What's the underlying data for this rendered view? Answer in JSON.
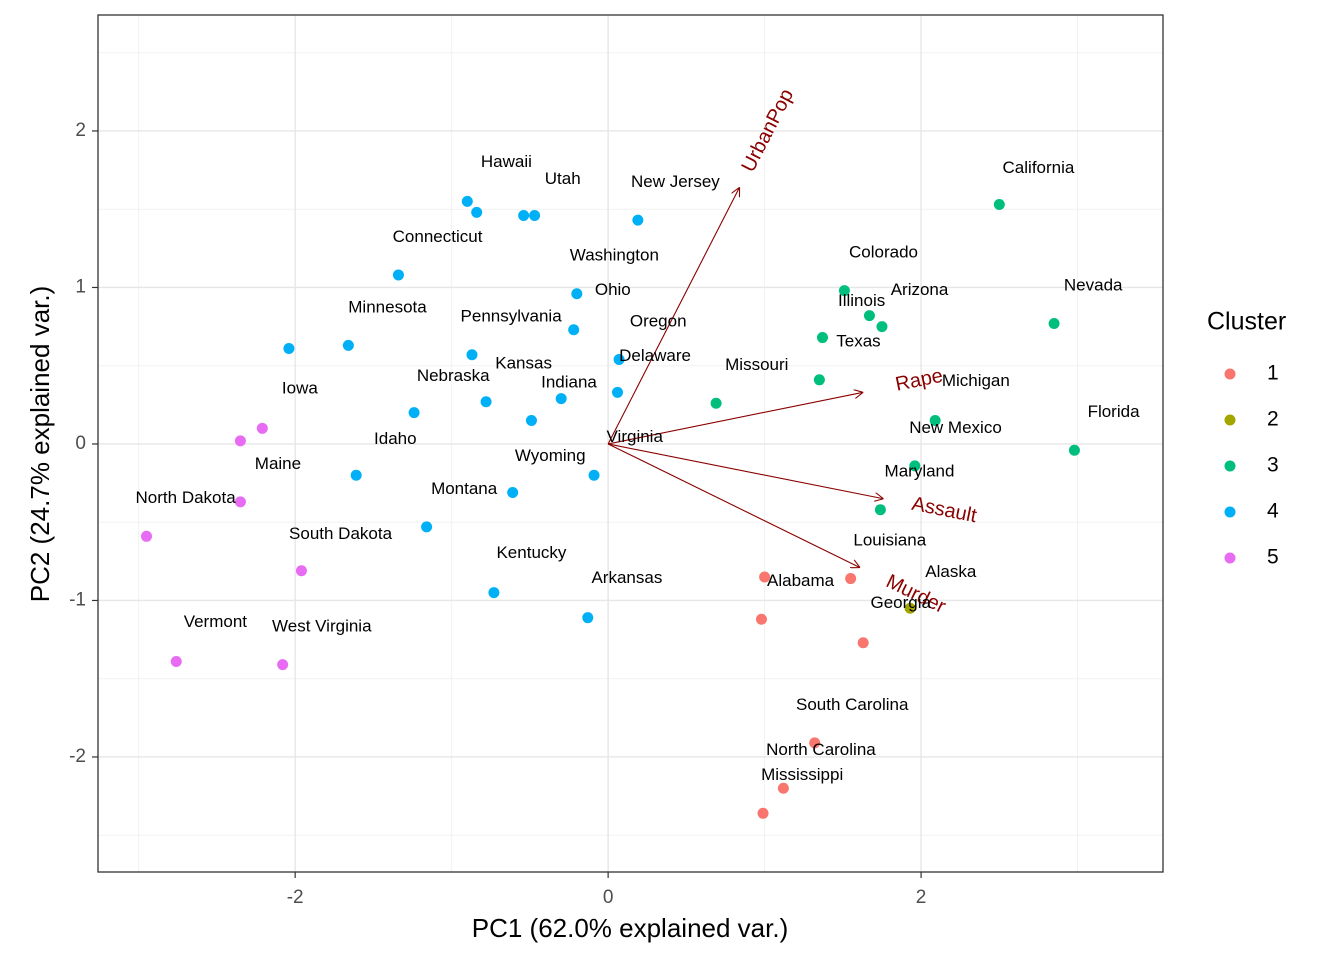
{
  "chart_data": {
    "type": "scatter",
    "x_label": "PC1 (62.0% explained var.)",
    "y_label": "PC2 (24.7% explained var.)",
    "xlim": [
      -3.26,
      3.546
    ],
    "ylim": [
      -2.735,
      2.741
    ],
    "xticks": [
      -2,
      0,
      2
    ],
    "yticks": [
      -2,
      -1,
      0,
      1,
      2
    ],
    "grid": true,
    "legend_title": "Cluster",
    "legend_position": "right",
    "series": [
      {
        "name": "1",
        "color": "#F8766D",
        "x": [
          1.0,
          1.55,
          0.98,
          1.63,
          1.32,
          1.12,
          0.99
        ],
        "values": [
          -0.85,
          -0.86,
          -1.12,
          -1.27,
          -1.91,
          -2.2,
          -2.36
        ]
      },
      {
        "name": "2",
        "color": "#A3A500",
        "x": [
          1.93
        ],
        "values": [
          -1.05
        ]
      },
      {
        "name": "3",
        "color": "#00BF7D",
        "x": [
          2.5,
          1.51,
          1.67,
          1.75,
          1.37,
          2.85,
          1.35,
          0.69,
          2.09,
          1.96,
          2.98,
          1.74
        ],
        "values": [
          1.53,
          0.98,
          0.82,
          0.75,
          0.68,
          0.77,
          0.41,
          0.26,
          0.15,
          -0.14,
          -0.04,
          -0.42
        ]
      },
      {
        "name": "4",
        "color": "#00B0F6",
        "x": [
          -0.9,
          -0.84,
          -0.54,
          -0.47,
          0.19,
          -1.34,
          -0.2,
          -0.22,
          -2.04,
          -1.66,
          -0.87,
          0.07,
          0.06,
          -0.3,
          -0.78,
          -1.24,
          -0.49,
          -1.61,
          -0.09,
          -0.61,
          -1.16,
          -0.73,
          -0.13
        ],
        "values": [
          1.55,
          1.48,
          1.46,
          1.46,
          1.43,
          1.08,
          0.96,
          0.73,
          0.61,
          0.63,
          0.57,
          0.54,
          0.33,
          0.29,
          0.27,
          0.2,
          0.15,
          -0.2,
          -0.2,
          -0.31,
          -0.53,
          -0.95,
          -1.11
        ]
      },
      {
        "name": "5",
        "color": "#E76BF3",
        "x": [
          -2.35,
          -2.21,
          -2.35,
          -2.95,
          -1.96,
          -2.76,
          -2.08
        ],
        "values": [
          0.02,
          0.1,
          -0.37,
          -0.59,
          -0.81,
          -1.39,
          -1.41
        ]
      }
    ],
    "labels": [
      {
        "text": "Hawaii",
        "x": -0.65,
        "y": 1.8
      },
      {
        "text": "Utah",
        "x": -0.29,
        "y": 1.69
      },
      {
        "text": "New Jersey",
        "x": 0.43,
        "y": 1.67
      },
      {
        "text": "California",
        "x": 2.75,
        "y": 1.76
      },
      {
        "text": "Connecticut",
        "x": -1.09,
        "y": 1.32
      },
      {
        "text": "Washington",
        "x": 0.04,
        "y": 1.2
      },
      {
        "text": "Colorado",
        "x": 1.76,
        "y": 1.22
      },
      {
        "text": "Ohio",
        "x": 0.03,
        "y": 0.98
      },
      {
        "text": "Illinois",
        "x": 1.62,
        "y": 0.91
      },
      {
        "text": "Arizona",
        "x": 1.99,
        "y": 0.98
      },
      {
        "text": "Nevada",
        "x": 3.1,
        "y": 1.01
      },
      {
        "text": "Minnesota",
        "x": -1.41,
        "y": 0.87
      },
      {
        "text": "Pennsylvania",
        "x": -0.62,
        "y": 0.81
      },
      {
        "text": "Oregon",
        "x": 0.32,
        "y": 0.78
      },
      {
        "text": "Texas",
        "x": 1.6,
        "y": 0.65
      },
      {
        "text": "Delaware",
        "x": 0.3,
        "y": 0.56
      },
      {
        "text": "Kansas",
        "x": -0.54,
        "y": 0.51
      },
      {
        "text": "Missouri",
        "x": 0.95,
        "y": 0.5
      },
      {
        "text": "Nebraska",
        "x": -0.99,
        "y": 0.43
      },
      {
        "text": "Iowa",
        "x": -1.97,
        "y": 0.35
      },
      {
        "text": "Indiana",
        "x": -0.25,
        "y": 0.39
      },
      {
        "text": "Michigan",
        "x": 2.35,
        "y": 0.4
      },
      {
        "text": "Florida",
        "x": 3.23,
        "y": 0.2
      },
      {
        "text": "New Mexico",
        "x": 2.22,
        "y": 0.1
      },
      {
        "text": "Virginia",
        "x": 0.17,
        "y": 0.04
      },
      {
        "text": "Idaho",
        "x": -1.36,
        "y": 0.03
      },
      {
        "text": "Wyoming",
        "x": -0.37,
        "y": -0.08
      },
      {
        "text": "Maine",
        "x": -2.11,
        "y": -0.13
      },
      {
        "text": "Maryland",
        "x": 1.99,
        "y": -0.18
      },
      {
        "text": "Montana",
        "x": -0.92,
        "y": -0.29
      },
      {
        "text": "North Dakota",
        "x": -2.7,
        "y": -0.35
      },
      {
        "text": "South Dakota",
        "x": -1.71,
        "y": -0.58
      },
      {
        "text": "Louisiana",
        "x": 1.8,
        "y": -0.62
      },
      {
        "text": "Kentucky",
        "x": -0.49,
        "y": -0.7
      },
      {
        "text": "Alaska",
        "x": 2.19,
        "y": -0.82
      },
      {
        "text": "Arkansas",
        "x": 0.12,
        "y": -0.86
      },
      {
        "text": "Alabama",
        "x": 1.23,
        "y": -0.88
      },
      {
        "text": "Georgia",
        "x": 1.87,
        "y": -1.02
      },
      {
        "text": "Vermont",
        "x": -2.51,
        "y": -1.14
      },
      {
        "text": "West Virginia",
        "x": -1.83,
        "y": -1.17
      },
      {
        "text": "South Carolina",
        "x": 1.56,
        "y": -1.67
      },
      {
        "text": "North Carolina",
        "x": 1.36,
        "y": -1.96
      },
      {
        "text": "Mississippi",
        "x": 1.24,
        "y": -2.12
      }
    ],
    "arrows": [
      {
        "name": "UrbanPop",
        "x": 0.84,
        "y": 1.64
      },
      {
        "name": "Rape",
        "x": 1.63,
        "y": 0.33
      },
      {
        "name": "Assault",
        "x": 1.76,
        "y": -0.35
      },
      {
        "name": "Murder",
        "x": 1.61,
        "y": -0.79
      }
    ],
    "arrow_color": "#8B0000"
  }
}
